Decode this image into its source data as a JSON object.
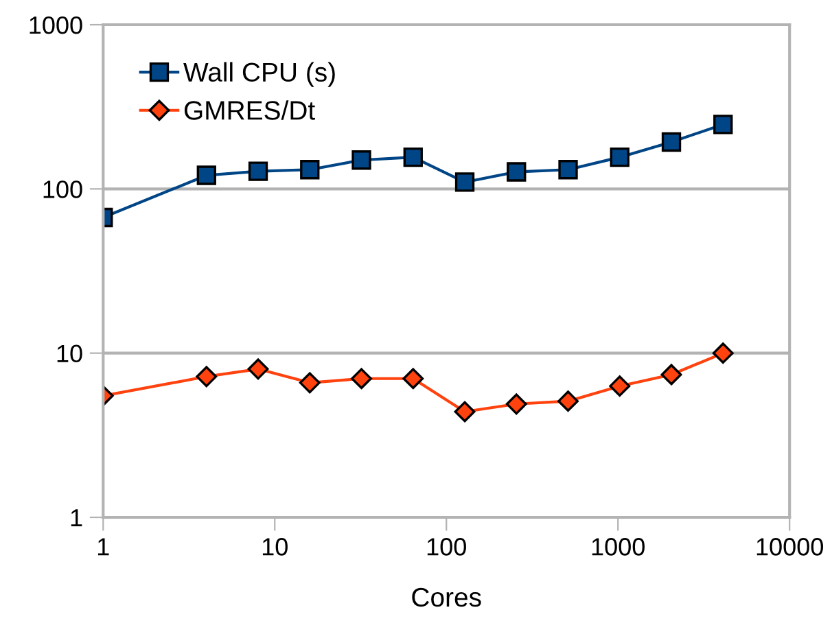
{
  "chart_data": {
    "type": "line",
    "xlabel": "Cores",
    "log": "xy",
    "x": [
      1,
      4,
      8,
      16,
      32,
      64,
      128,
      256,
      512,
      1024,
      2048,
      4096
    ],
    "series": [
      {
        "name": "Wall CPU (s)",
        "color": "#004586",
        "marker": "square",
        "values": [
          67,
          121,
          128,
          131,
          150,
          156,
          110,
          127,
          131,
          156,
          193,
          247
        ]
      },
      {
        "name": "GMRES/Dt",
        "color": "#ff420e",
        "marker": "diamond",
        "values": [
          5.5,
          7.2,
          8.0,
          6.6,
          7.0,
          7.0,
          4.4,
          4.9,
          5.1,
          6.3,
          7.4,
          10
        ]
      }
    ],
    "xlim": [
      1,
      10000
    ],
    "xticks": [
      1,
      10,
      100,
      1000,
      10000
    ],
    "ylim": [
      1,
      1000
    ],
    "yticks": [
      1,
      10,
      100,
      1000
    ],
    "grid": "y",
    "legend": "top left"
  }
}
